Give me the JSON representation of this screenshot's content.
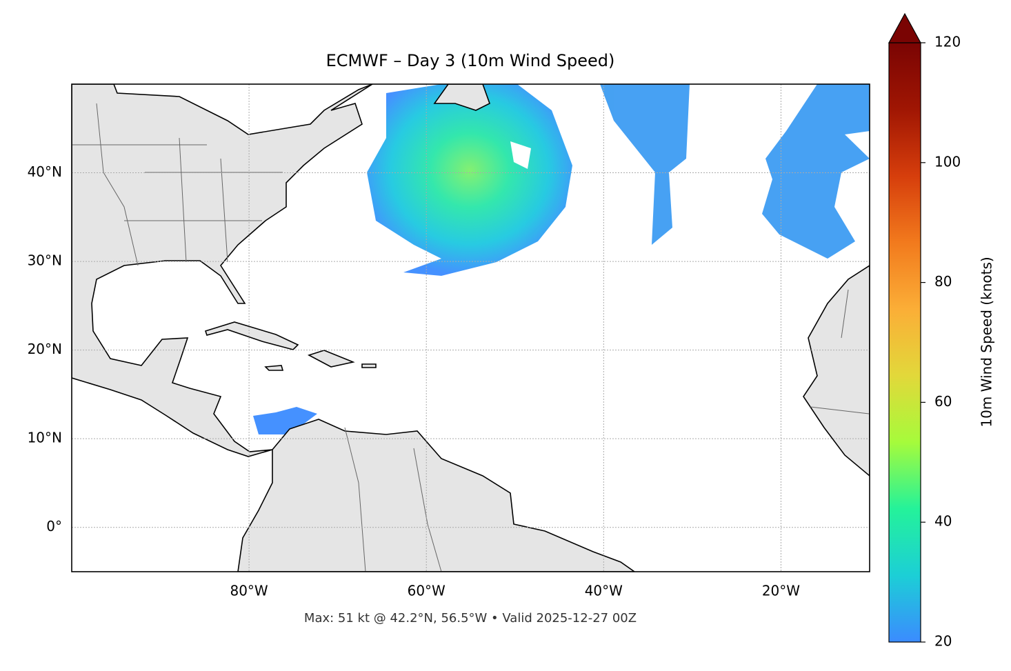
{
  "chart_data": {
    "type": "map",
    "title": "ECMWF – Day 3 (10m Wind Speed)",
    "xlim": [
      -100,
      -10
    ],
    "ylim": [
      -5,
      50
    ],
    "xticks": [
      {
        "value": -80,
        "label": "80°W"
      },
      {
        "value": -60,
        "label": "60°W"
      },
      {
        "value": -40,
        "label": "40°W"
      },
      {
        "value": -20,
        "label": "20°W"
      }
    ],
    "yticks": [
      {
        "value": 0,
        "label": "0°"
      },
      {
        "value": 10,
        "label": "10°N"
      },
      {
        "value": 20,
        "label": "20°N"
      },
      {
        "value": 30,
        "label": "30°N"
      },
      {
        "value": 40,
        "label": "40°N"
      }
    ],
    "grid": true,
    "footnote": "Max: 51 kt @ 42.2°N, 56.5°W • Valid 2025-12-27 00Z",
    "colorbar": {
      "label": "10m Wind Speed (knots)",
      "lim": [
        20,
        120
      ],
      "ticks": [
        20,
        40,
        60,
        80,
        100,
        120
      ],
      "colormap": [
        "#3b8bff",
        "#1ccfd6",
        "#24f29a",
        "#a6fb3b",
        "#e2d83a",
        "#fbae37",
        "#f27a1d",
        "#d63e0c",
        "#a01603",
        "#7a0403"
      ]
    }
  }
}
